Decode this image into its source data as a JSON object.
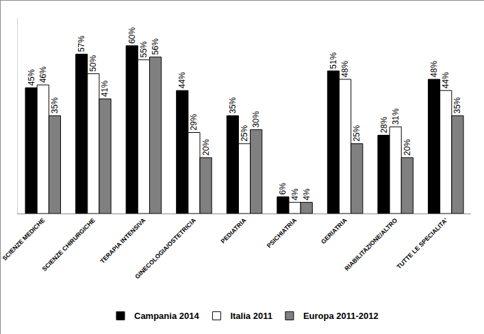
{
  "chart_data": {
    "type": "bar",
    "categories": [
      "SCIENZE MEDICHE",
      "SCIENZE CHIRURGICHE",
      "TERAPIA INTENSIVA",
      "GINECOLOGIA/OSTETRICIA",
      "PEDIATRIA",
      "PSICHIATRIA",
      "GERIATRIA",
      "RIABILITAZIONE/ALTRO",
      "TUTTE LE SPECIALITA'"
    ],
    "series": [
      {
        "name": "Campania 2014",
        "color": "#000000",
        "values": [
          45,
          57,
          60,
          44,
          35,
          6,
          51,
          28,
          48
        ],
        "value_labels": [
          "45%",
          "57%",
          "60%",
          "44%",
          "35%",
          "6%",
          "51%",
          "28%",
          "48%"
        ]
      },
      {
        "name": "Italia 2011",
        "color": "#ffffff",
        "values": [
          46,
          50,
          55,
          29,
          25,
          4,
          48,
          31,
          44
        ],
        "value_labels": [
          "46%",
          "50%",
          "55%",
          "29%",
          "25%",
          "4%",
          "48%",
          "31%",
          "44%"
        ]
      },
      {
        "name": "Europa 2011-2012",
        "color": "#808080",
        "values": [
          35,
          41,
          56,
          20,
          30,
          4,
          25,
          20,
          35
        ],
        "value_labels": [
          "35%",
          "41%",
          "56%",
          "20%",
          "30%",
          "4%",
          "25%",
          "20%",
          "35%"
        ]
      }
    ],
    "ylim": [
      0,
      70
    ],
    "yticks": [],
    "grid": false,
    "legend": "bottom",
    "data_labels": true,
    "tick_labels": "x"
  }
}
